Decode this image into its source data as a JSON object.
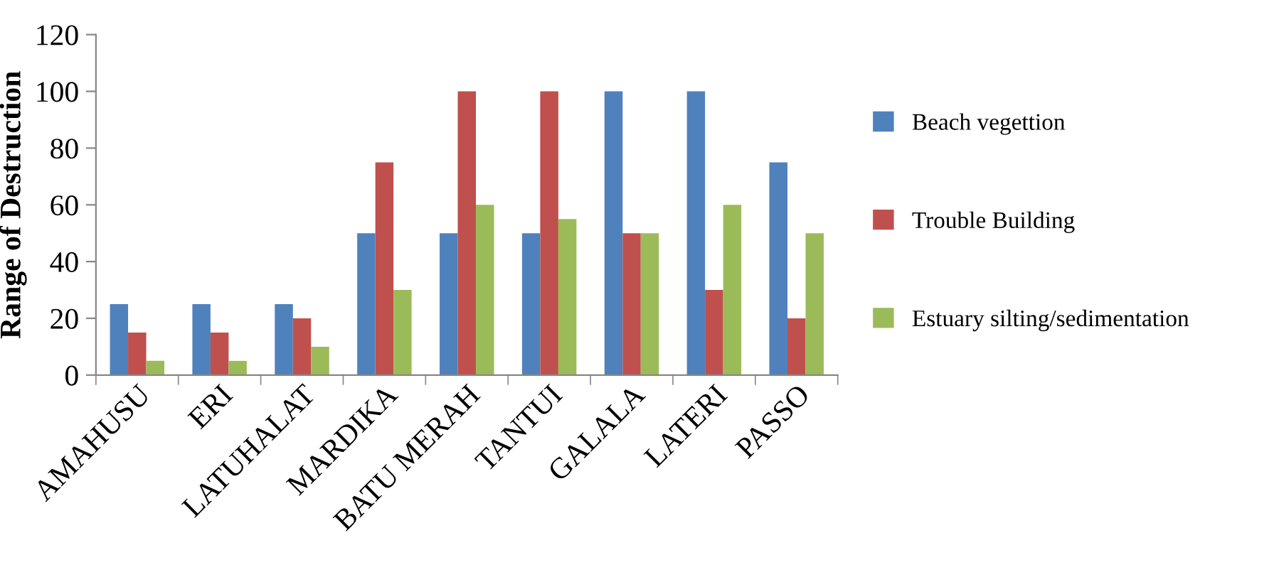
{
  "chart_data": {
    "type": "bar",
    "ylabel": "Range of Destruction",
    "categories": [
      "AMAHUSU",
      "ERI",
      "LATUHALAT",
      "MARDIKA",
      "BATU MERAH",
      "TANTUI",
      "GALALA",
      "LATERI",
      "PASSO"
    ],
    "series": [
      {
        "name": "Beach vegettion",
        "color": "#4f81bd",
        "values": [
          25,
          25,
          25,
          50,
          50,
          50,
          100,
          100,
          75
        ]
      },
      {
        "name": "Trouble Building",
        "color": "#c0504d",
        "values": [
          15,
          15,
          20,
          75,
          100,
          100,
          50,
          30,
          20
        ]
      },
      {
        "name": "Estuary silting/sedimentation",
        "color": "#9bbb59",
        "values": [
          5,
          5,
          10,
          30,
          60,
          55,
          50,
          60,
          50
        ]
      }
    ],
    "ylim": [
      0,
      120
    ],
    "yticks": [
      0,
      20,
      40,
      60,
      80,
      100,
      120
    ],
    "grid": false,
    "legend": "right"
  }
}
